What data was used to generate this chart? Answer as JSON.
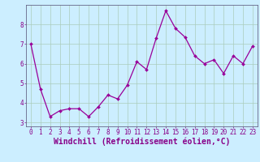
{
  "xlabel": "Windchill (Refroidissement éolien,°C)",
  "x": [
    0,
    1,
    2,
    3,
    4,
    5,
    6,
    7,
    8,
    9,
    10,
    11,
    12,
    13,
    14,
    15,
    16,
    17,
    18,
    19,
    20,
    21,
    22,
    23
  ],
  "y": [
    7.0,
    4.7,
    3.3,
    3.6,
    3.7,
    3.7,
    3.3,
    3.8,
    4.4,
    4.2,
    4.9,
    6.1,
    5.7,
    7.3,
    8.7,
    7.8,
    7.35,
    6.4,
    6.0,
    6.2,
    5.5,
    6.4,
    6.0,
    6.9
  ],
  "line_color": "#990099",
  "marker_color": "#990099",
  "bg_color": "#cceeff",
  "grid_color": "#aaccbb",
  "spine_color": "#666688",
  "tick_label_color": "#880088",
  "xlabel_color": "#880088",
  "ylim": [
    2.8,
    9.0
  ],
  "xlim": [
    -0.5,
    23.5
  ],
  "yticks": [
    3,
    4,
    5,
    6,
    7,
    8
  ],
  "xticks": [
    0,
    1,
    2,
    3,
    4,
    5,
    6,
    7,
    8,
    9,
    10,
    11,
    12,
    13,
    14,
    15,
    16,
    17,
    18,
    19,
    20,
    21,
    22,
    23
  ],
  "tick_fontsize": 5.5,
  "xlabel_fontsize": 7.0
}
